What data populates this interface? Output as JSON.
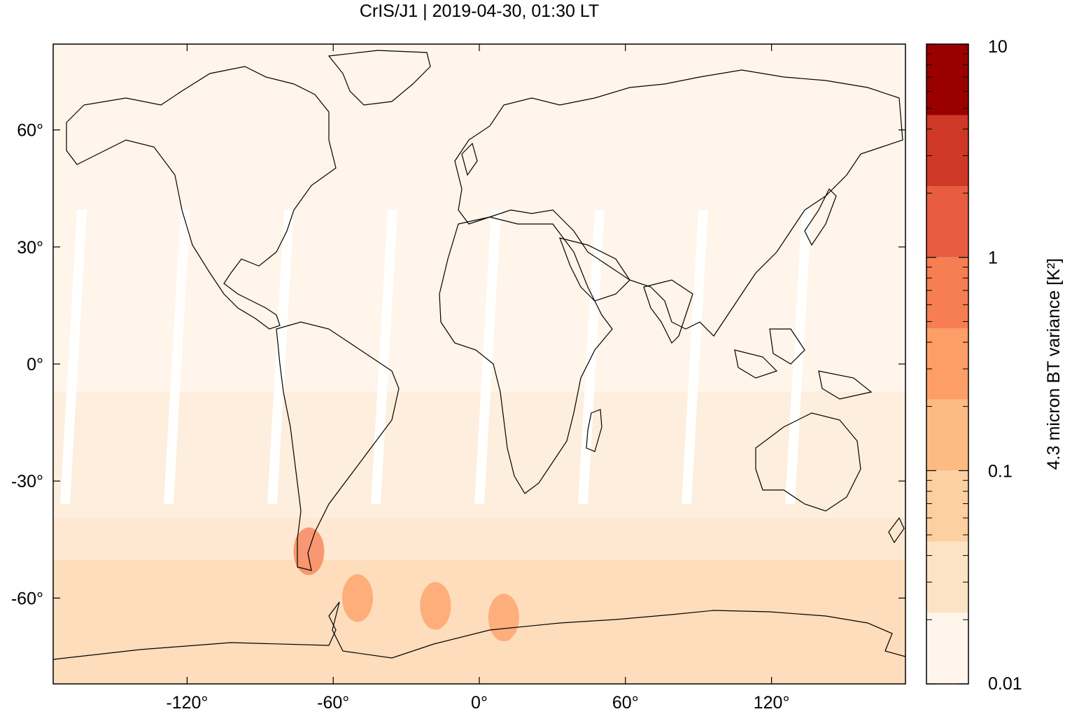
{
  "title": "CrIS/J1 | 2019-04-30, 01:30 LT",
  "map": {
    "projection": "equirectangular",
    "lon_range": [
      -175,
      175
    ],
    "lat_range": [
      -82,
      82
    ],
    "x_ticks": [
      {
        "value": -120,
        "label": "-120°"
      },
      {
        "value": -60,
        "label": "-60°"
      },
      {
        "value": 0,
        "label": "0°"
      },
      {
        "value": 60,
        "label": "60°"
      },
      {
        "value": 120,
        "label": "120°"
      }
    ],
    "y_ticks": [
      {
        "value": 60,
        "label": "60°"
      },
      {
        "value": 30,
        "label": "30°"
      },
      {
        "value": 0,
        "label": "0°"
      },
      {
        "value": -30,
        "label": "-30°"
      },
      {
        "value": -60,
        "label": "-60°"
      }
    ]
  },
  "colorbar": {
    "label": "4.3 micron BT variance [K²]",
    "scale": "log",
    "range": [
      0.01,
      10
    ],
    "tick_labels": [
      {
        "value": 10,
        "label": "10"
      },
      {
        "value": 1,
        "label": "1"
      },
      {
        "value": 0.1,
        "label": "0.1"
      },
      {
        "value": 0.01,
        "label": "0.01"
      }
    ],
    "colors": [
      "#fff5ea",
      "#fde3c6",
      "#fdd0a2",
      "#fdbb84",
      "#fc9e66",
      "#f67e52",
      "#e85c40",
      "#cf3826",
      "#9b0000"
    ]
  },
  "chart_data": {
    "type": "heatmap",
    "title": "CrIS/J1 | 2019-04-30, 01:30 LT",
    "variable": "4.3 micron BT variance",
    "units": "K²",
    "color_scale": "log",
    "color_range": [
      0.01,
      10
    ],
    "x_axis": "longitude",
    "y_axis": "latitude",
    "xlim": [
      -175,
      175
    ],
    "ylim": [
      -82,
      82
    ],
    "hotspots": [
      {
        "region": "Southern Andes / Patagonia",
        "lon": -70,
        "lat": -48,
        "approx_value": 0.6
      },
      {
        "region": "South Atlantic",
        "lon": -18,
        "lat": -62,
        "approx_value": 0.4
      },
      {
        "region": "Antarctic Peninsula vicinity",
        "lon": -50,
        "lat": -60,
        "approx_value": 0.3
      },
      {
        "region": "Southern Indian Ocean",
        "lon": 10,
        "lat": -65,
        "approx_value": 0.3
      }
    ]
  }
}
